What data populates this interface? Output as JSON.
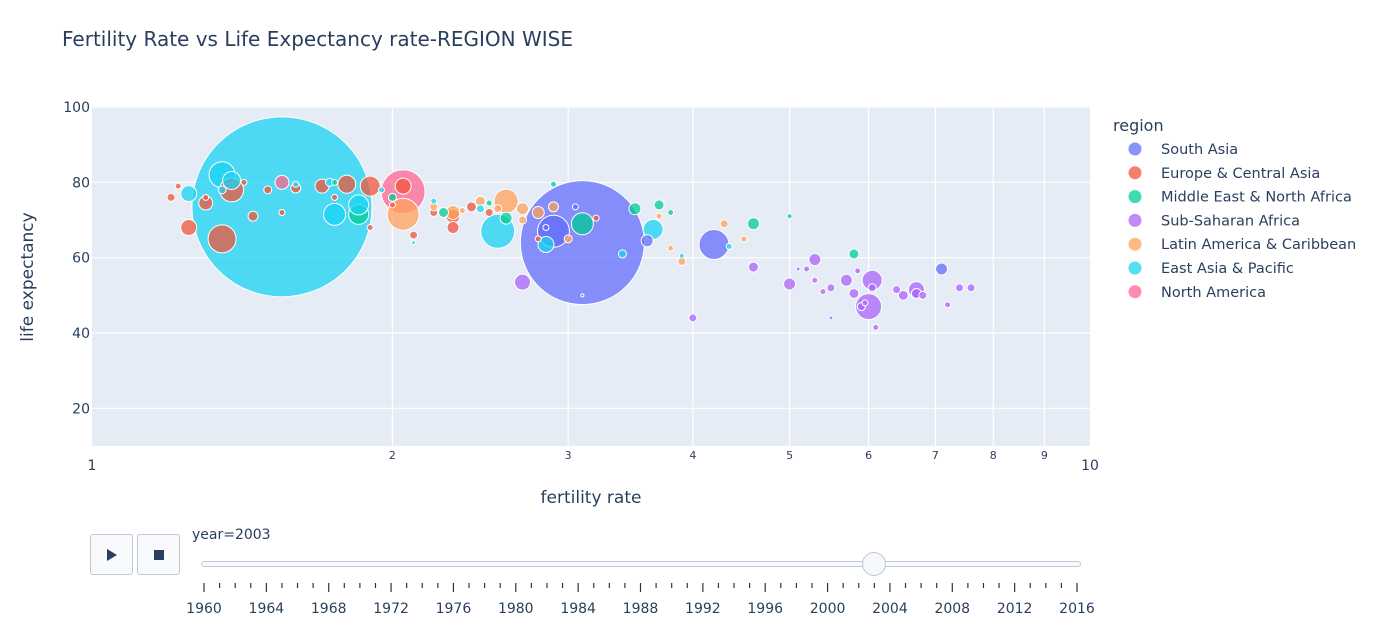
{
  "chart_data": {
    "type": "scatter",
    "title": "Fertility Rate vs Life Expectancy rate-REGION WISE",
    "xlabel": "fertility rate",
    "ylabel": "life expectancy",
    "x_scale": "log",
    "xlim": [
      1,
      10
    ],
    "ylim": [
      10,
      100
    ],
    "x_ticks": [
      {
        "v": 1,
        "label": "1",
        "major": true
      },
      {
        "v": 2,
        "label": "2",
        "major": false
      },
      {
        "v": 3,
        "label": "3",
        "major": false
      },
      {
        "v": 4,
        "label": "4",
        "major": false
      },
      {
        "v": 5,
        "label": "5",
        "major": false
      },
      {
        "v": 6,
        "label": "6",
        "major": false
      },
      {
        "v": 7,
        "label": "7",
        "major": false
      },
      {
        "v": 8,
        "label": "8",
        "major": false
      },
      {
        "v": 9,
        "label": "9",
        "major": false
      },
      {
        "v": 10,
        "label": "10",
        "major": true
      }
    ],
    "y_ticks": [
      20,
      40,
      60,
      80,
      100
    ],
    "grid": true,
    "legend_title": "region",
    "legend_position": "right",
    "series": [
      {
        "name": "South Asia",
        "color": "#636efa",
        "points": [
          [
            3.1,
            64,
            62
          ],
          [
            2.9,
            67,
            16
          ],
          [
            4.2,
            63.5,
            15
          ],
          [
            3.6,
            64.5,
            6
          ],
          [
            7.1,
            57,
            6
          ],
          [
            3.05,
            73.5,
            3
          ],
          [
            2.85,
            68,
            3
          ],
          [
            3.1,
            50,
            1.5
          ]
        ]
      },
      {
        "name": "Europe & Central Asia",
        "color": "#ef553b",
        "points": [
          [
            1.25,
            68,
            8
          ],
          [
            1.35,
            65,
            14
          ],
          [
            1.38,
            78,
            12
          ],
          [
            1.3,
            74.5,
            7
          ],
          [
            1.6,
            78.5,
            5
          ],
          [
            1.7,
            79,
            7
          ],
          [
            1.8,
            79.5,
            9
          ],
          [
            1.9,
            79,
            10
          ],
          [
            2.05,
            79,
            8
          ],
          [
            2.3,
            71,
            7
          ],
          [
            2.4,
            73.5,
            5
          ],
          [
            2.3,
            68,
            6
          ],
          [
            1.45,
            71,
            5
          ],
          [
            1.2,
            76,
            4
          ],
          [
            2.1,
            66,
            4
          ],
          [
            2.5,
            72,
            4
          ],
          [
            1.5,
            78,
            4
          ],
          [
            1.3,
            76,
            3
          ],
          [
            1.9,
            68,
            3
          ],
          [
            2.2,
            72,
            4
          ],
          [
            1.55,
            72,
            3
          ],
          [
            3.2,
            70.5,
            3
          ],
          [
            1.75,
            76,
            3
          ],
          [
            2.8,
            65,
            3
          ],
          [
            1.42,
            80,
            3
          ],
          [
            1.22,
            79,
            3
          ],
          [
            2.0,
            74,
            3
          ]
        ]
      },
      {
        "name": "Middle East & North Africa",
        "color": "#00cc96",
        "points": [
          [
            3.1,
            69,
            11
          ],
          [
            1.85,
            71.5,
            10
          ],
          [
            2.6,
            70.5,
            6
          ],
          [
            3.5,
            73,
            6
          ],
          [
            4.6,
            69,
            6
          ],
          [
            3.7,
            74,
            5
          ],
          [
            5.8,
            61,
            5
          ],
          [
            2.25,
            72,
            5
          ],
          [
            2.9,
            79.5,
            3
          ],
          [
            3.8,
            72,
            3
          ],
          [
            5.0,
            71,
            2.5
          ],
          [
            2.5,
            74.5,
            3
          ],
          [
            1.75,
            80,
            3
          ],
          [
            2.0,
            76,
            4
          ]
        ]
      },
      {
        "name": "Sub-Saharan Africa",
        "color": "#ab63fa",
        "points": [
          [
            6.0,
            47,
            13
          ],
          [
            6.05,
            54,
            10
          ],
          [
            6.7,
            51.5,
            8
          ],
          [
            5.3,
            59.5,
            6
          ],
          [
            5.7,
            54,
            6
          ],
          [
            4.6,
            57.5,
            5
          ],
          [
            2.7,
            53.5,
            8
          ],
          [
            5.0,
            53,
            6
          ],
          [
            5.8,
            50.5,
            5
          ],
          [
            6.4,
            51.5,
            4
          ],
          [
            6.5,
            50,
            5
          ],
          [
            6.7,
            50.5,
            5
          ],
          [
            7.2,
            47.5,
            3
          ],
          [
            7.4,
            52,
            4
          ],
          [
            7.6,
            52,
            4
          ],
          [
            5.9,
            47,
            4
          ],
          [
            4.0,
            44,
            4
          ],
          [
            5.5,
            52,
            4
          ],
          [
            6.1,
            41.5,
            3
          ],
          [
            5.2,
            57,
            3
          ],
          [
            5.85,
            56.5,
            3
          ],
          [
            5.5,
            44,
            2
          ],
          [
            6.8,
            50,
            4
          ],
          [
            5.1,
            57,
            2
          ],
          [
            5.4,
            51,
            3
          ],
          [
            5.95,
            48,
            3
          ],
          [
            6.05,
            52,
            4
          ],
          [
            5.3,
            54,
            3
          ]
        ]
      },
      {
        "name": "Latin America & Caribbean",
        "color": "#ffa15a",
        "points": [
          [
            2.05,
            71.5,
            16
          ],
          [
            2.6,
            75,
            12
          ],
          [
            2.3,
            72,
            7
          ],
          [
            2.7,
            73,
            6
          ],
          [
            2.8,
            72,
            6
          ],
          [
            2.9,
            73.5,
            5
          ],
          [
            2.45,
            75,
            5
          ],
          [
            2.2,
            73.5,
            4
          ],
          [
            3.0,
            65,
            4
          ],
          [
            3.7,
            71,
            3
          ],
          [
            4.3,
            69,
            4
          ],
          [
            3.9,
            59,
            4
          ],
          [
            3.8,
            62.5,
            3
          ],
          [
            2.7,
            70,
            4
          ],
          [
            2.55,
            73,
            4
          ],
          [
            2.35,
            72.5,
            3
          ],
          [
            4.5,
            65,
            3
          ]
        ]
      },
      {
        "name": "East Asia & Pacific",
        "color": "#19d3f3",
        "points": [
          [
            1.55,
            73.5,
            90
          ],
          [
            1.35,
            82,
            13
          ],
          [
            1.75,
            71.5,
            11
          ],
          [
            2.55,
            67,
            17
          ],
          [
            1.25,
            77,
            8
          ],
          [
            1.85,
            74,
            10
          ],
          [
            3.65,
            67.5,
            10
          ],
          [
            1.38,
            80.5,
            9
          ],
          [
            2.85,
            63.5,
            8
          ],
          [
            3.4,
            61,
            4
          ],
          [
            1.6,
            79.5,
            3
          ],
          [
            1.73,
            80,
            4
          ],
          [
            2.45,
            73,
            4
          ],
          [
            4.35,
            63,
            3
          ],
          [
            3.9,
            60.5,
            2.5
          ],
          [
            2.2,
            75,
            3
          ],
          [
            1.35,
            78,
            4
          ],
          [
            2.1,
            64,
            2
          ],
          [
            1.95,
            78,
            3
          ]
        ]
      },
      {
        "name": "North America",
        "color": "#ff6692",
        "points": [
          [
            2.05,
            77.5,
            22
          ],
          [
            1.55,
            80,
            7
          ]
        ]
      }
    ]
  },
  "slider": {
    "current_label": "year=2003",
    "current_year": 2003,
    "year_min": 1960,
    "year_max": 2016,
    "labels": [
      "1960",
      "1964",
      "1968",
      "1972",
      "1976",
      "1980",
      "1984",
      "1988",
      "1992",
      "1996",
      "2000",
      "2004",
      "2008",
      "2012",
      "2016"
    ],
    "play_icon": "play-icon",
    "stop_icon": "stop-icon"
  }
}
